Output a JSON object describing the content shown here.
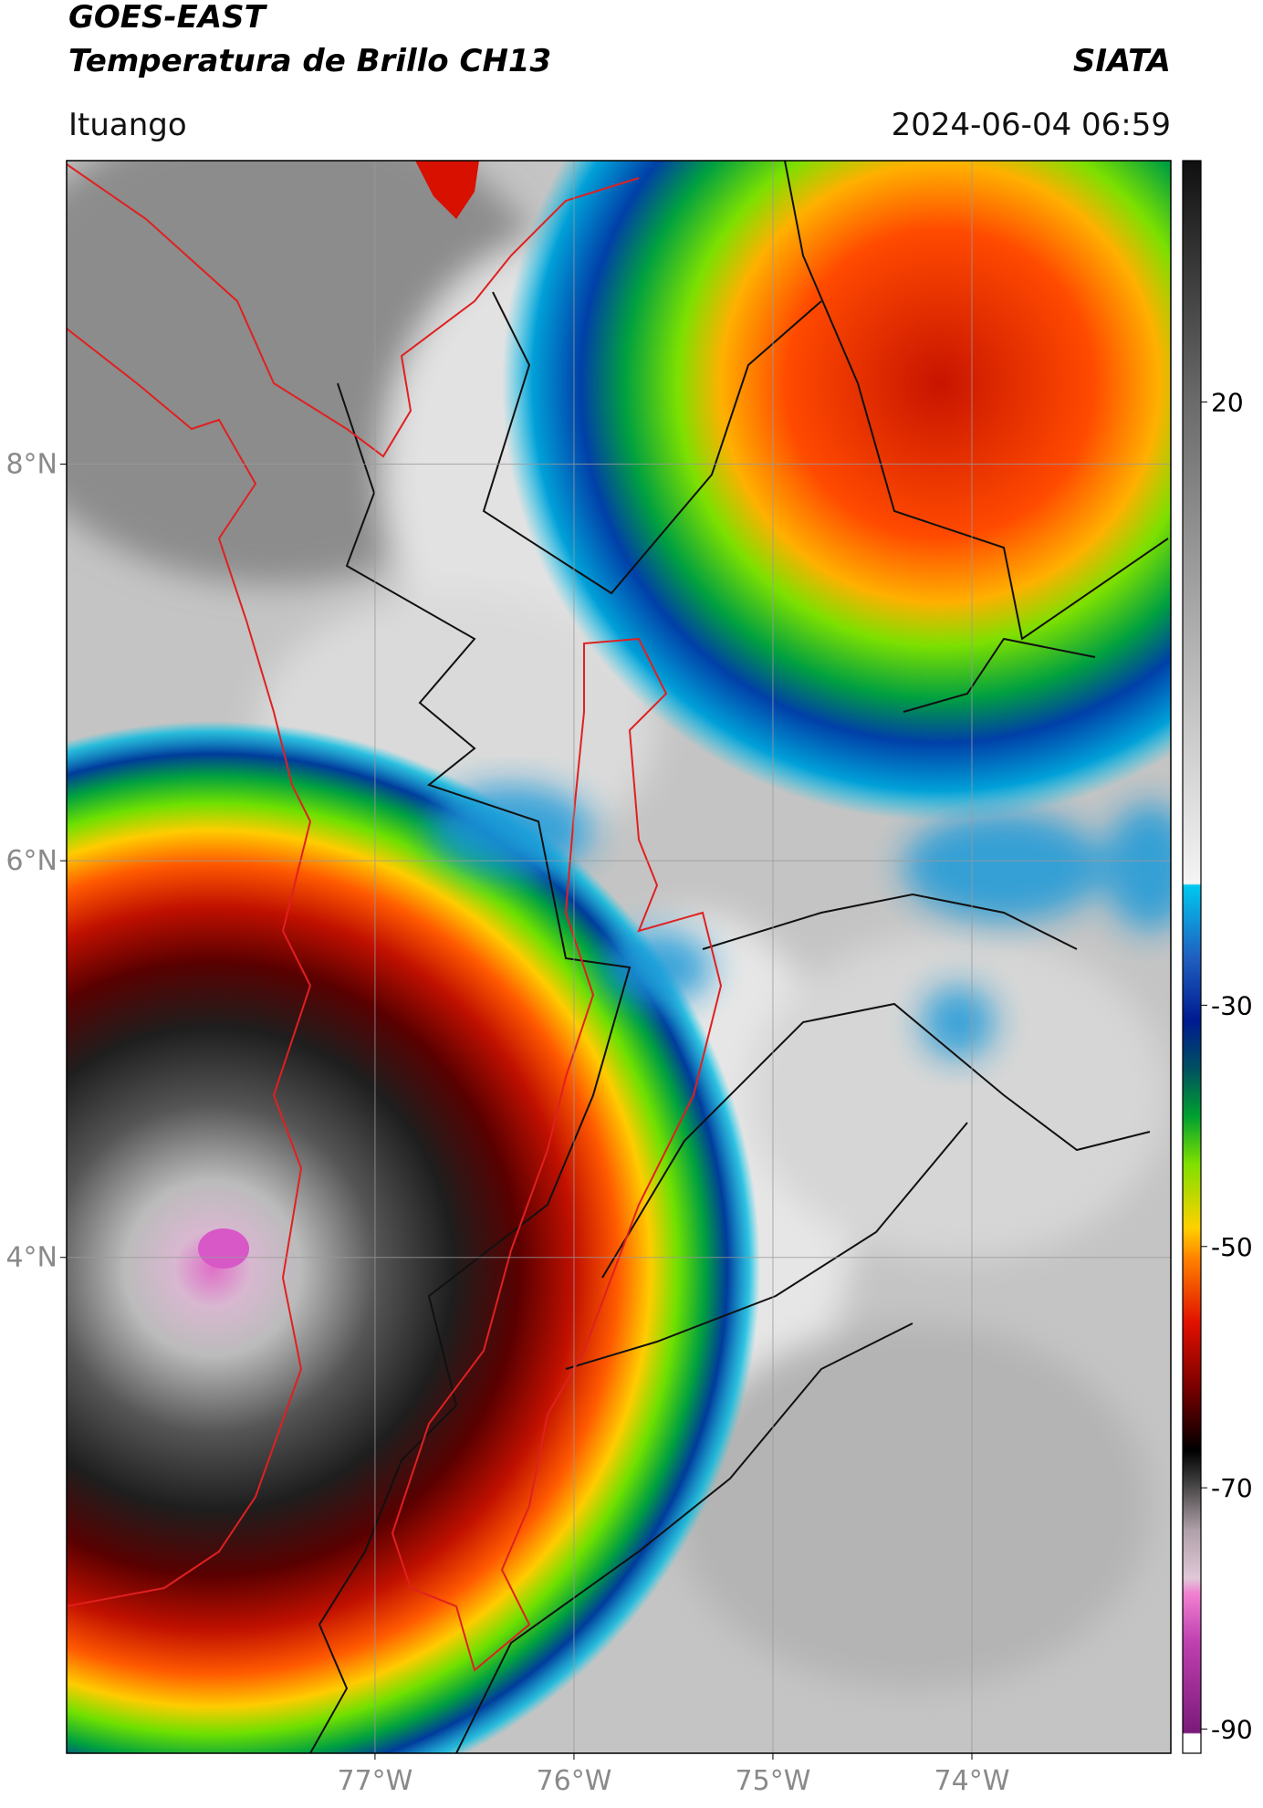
{
  "header": {
    "satellite": "GOES-EAST",
    "product": "Temperatura de Brillo CH13",
    "brand": "SIATA",
    "location": "Ituango",
    "datetime": "2024-06-04 06:59"
  },
  "map": {
    "xlim": [
      -78.55,
      -73.0
    ],
    "ylim": [
      1.5,
      9.53
    ],
    "xticks": [
      {
        "value": -77,
        "label": "77°W"
      },
      {
        "value": -76,
        "label": "76°W"
      },
      {
        "value": -75,
        "label": "75°W"
      },
      {
        "value": -74,
        "label": "74°W"
      }
    ],
    "yticks": [
      {
        "value": 8,
        "label": "8°N"
      },
      {
        "value": 6,
        "label": "6°N"
      },
      {
        "value": 4,
        "label": "4°N"
      }
    ],
    "grid": true
  },
  "colorbar": {
    "lim": [
      -92,
      40
    ],
    "ticks": [
      20,
      -30,
      -50,
      -70,
      -90
    ]
  }
}
